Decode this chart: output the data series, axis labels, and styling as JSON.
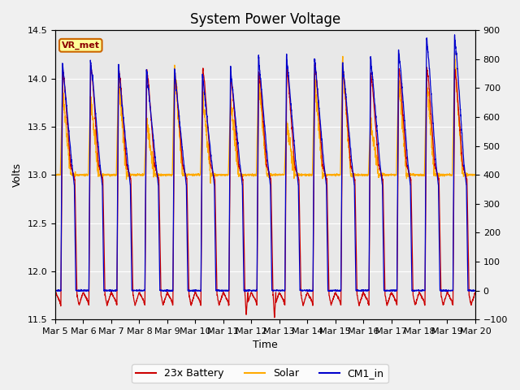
{
  "title": "System Power Voltage",
  "xlabel": "Time",
  "ylabel": "Volts",
  "ylim_left": [
    11.5,
    14.5
  ],
  "ylim_right": [
    -100,
    900
  ],
  "yticks_left": [
    11.5,
    12.0,
    12.5,
    13.0,
    13.5,
    14.0,
    14.5
  ],
  "yticks_right": [
    -100,
    0,
    100,
    200,
    300,
    400,
    500,
    600,
    700,
    800,
    900
  ],
  "xticklabels": [
    "Mar 5",
    "Mar 6",
    "Mar 7",
    "Mar 8",
    "Mar 9",
    "Mar 10",
    "Mar 11",
    "Mar 12",
    "Mar 13",
    "Mar 14",
    "Mar 15",
    "Mar 16",
    "Mar 17",
    "Mar 18",
    "Mar 19",
    "Mar 20"
  ],
  "color_battery": "#cc0000",
  "color_solar": "#ffaa00",
  "color_cm1": "#0000cc",
  "label_battery": "23x Battery",
  "label_solar": "Solar",
  "label_cm1": "CM1_in",
  "annotation_text": "VR_met",
  "annotation_box_facecolor": "#ffff99",
  "annotation_box_edgecolor": "#cc6600",
  "n_days": 15,
  "background_color": "#e8e8e8",
  "grid_color": "#ffffff",
  "title_fontsize": 12,
  "axis_fontsize": 9,
  "tick_fontsize": 8
}
